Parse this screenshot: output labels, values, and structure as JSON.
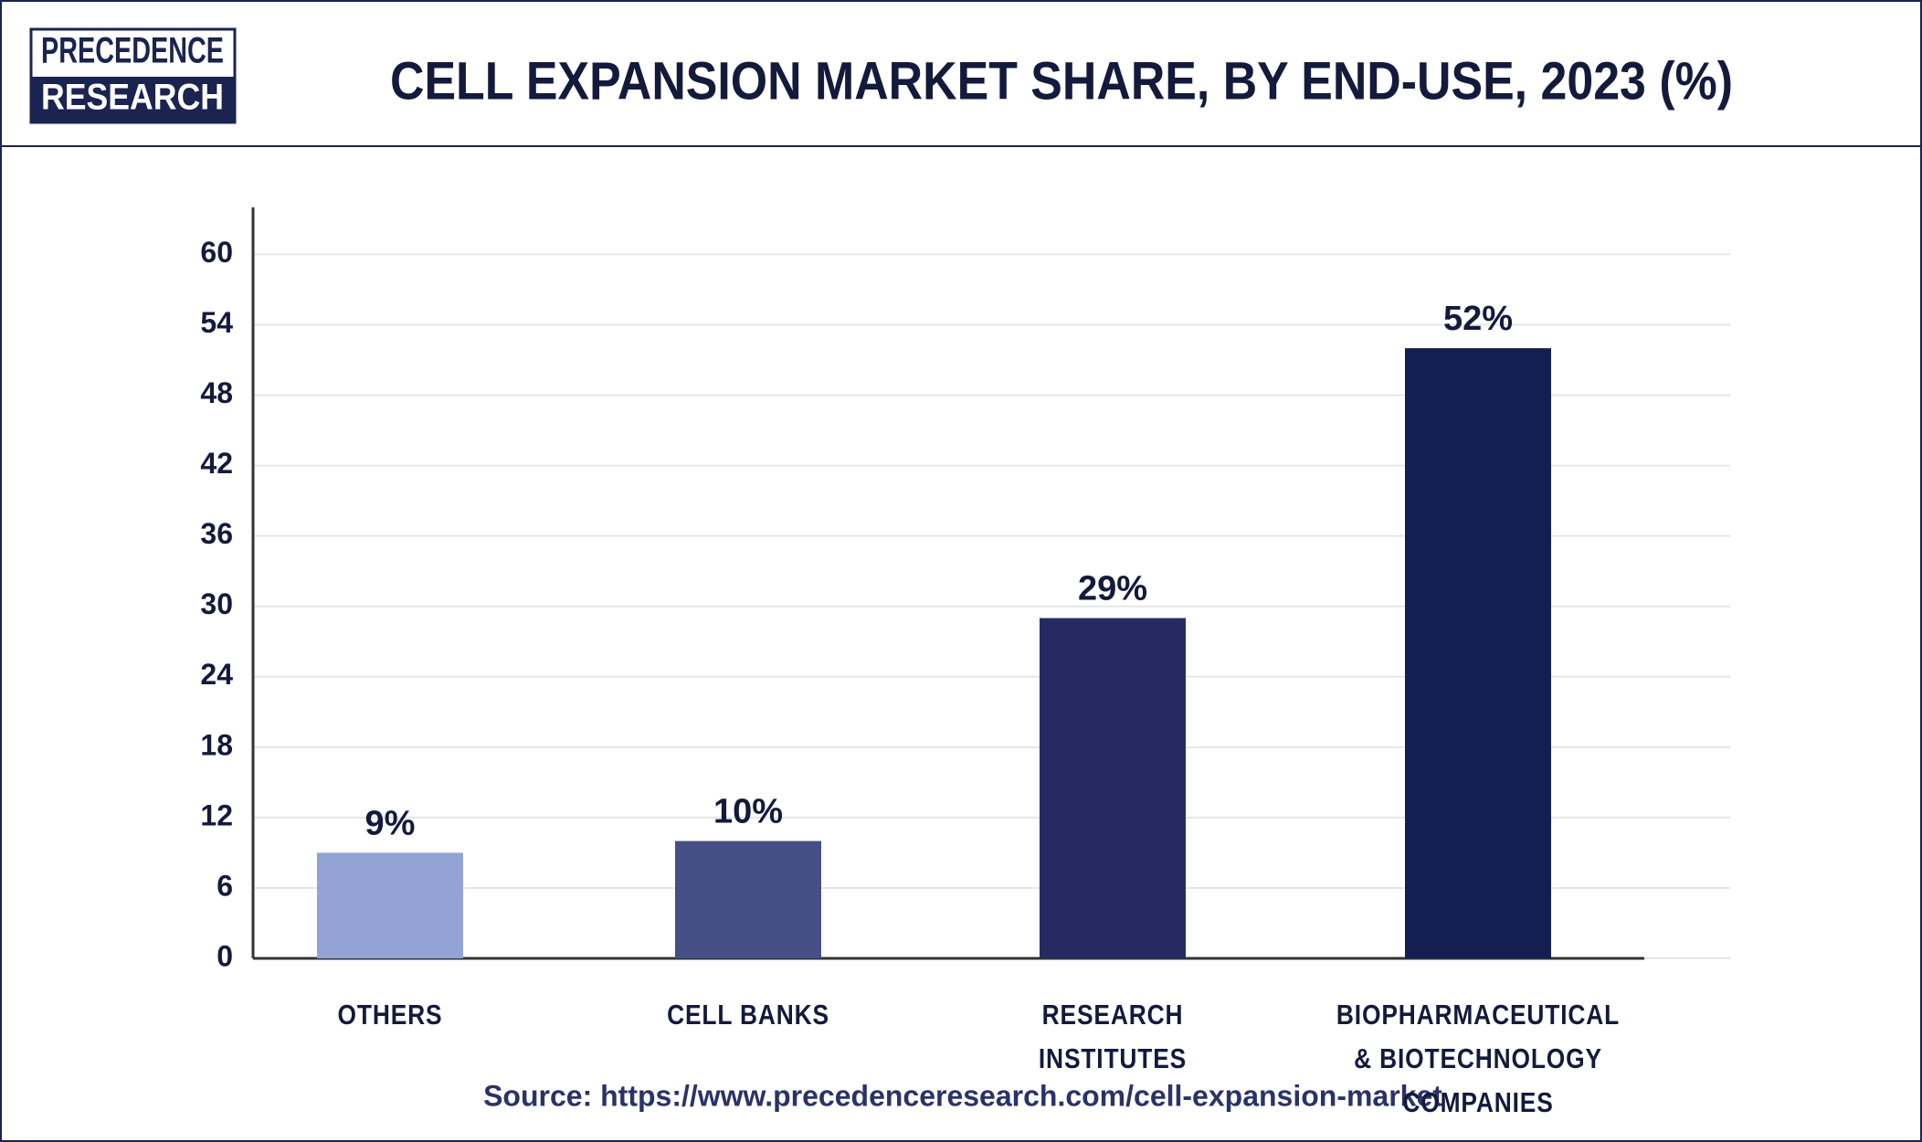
{
  "logo": {
    "line1": "PRECEDENCE",
    "line2": "RESEARCH"
  },
  "chart_data": {
    "type": "bar",
    "title": "CELL EXPANSION MARKET SHARE, BY END-USE, 2023 (%)",
    "categories": [
      "OTHERS",
      "CELL BANKS",
      "RESEARCH INSTITUTES",
      "BIOPHARMACEUTICAL & BIOTECHNOLOGY COMPANIES"
    ],
    "values": [
      9,
      10,
      29,
      52
    ],
    "value_labels": [
      "9%",
      "10%",
      "29%",
      "52%"
    ],
    "colors": [
      "#94a3d6",
      "#464f85",
      "#252b62",
      "#141e50"
    ],
    "ylim": [
      0,
      64
    ],
    "yticks": [
      0,
      6,
      12,
      18,
      24,
      30,
      36,
      42,
      48,
      54,
      60
    ],
    "grid": true,
    "source": "Source: https://www.precedenceresearch.com/cell-expansion-market"
  }
}
